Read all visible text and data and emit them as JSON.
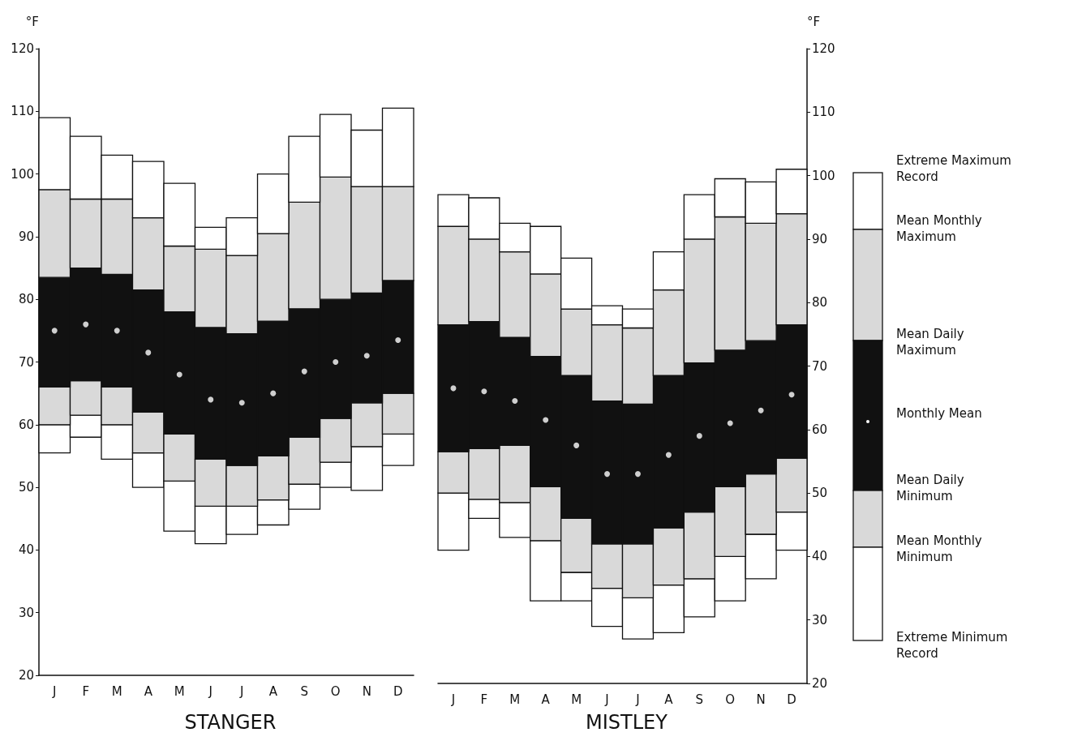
{
  "chart_data": [
    {
      "type": "bar",
      "title": "STANGER",
      "ylabel": "°F",
      "grid": false,
      "marker": "circle",
      "categories": [
        "J",
        "F",
        "M",
        "A",
        "M",
        "J",
        "J",
        "A",
        "S",
        "O",
        "N",
        "D"
      ],
      "ylim": [
        20,
        120
      ],
      "yticks": [
        20,
        30,
        40,
        50,
        60,
        70,
        80,
        90,
        100,
        110,
        120
      ],
      "series": [
        {
          "color": "#ffffff",
          "base": [
            55.5,
            58,
            54.5,
            50,
            43,
            41,
            42.5,
            44,
            46.5,
            50,
            49.5,
            53.5
          ],
          "values": [
            4.5,
            3.5,
            5.5,
            5.5,
            8,
            6,
            4.5,
            4,
            4,
            4,
            7,
            5
          ]
        },
        {
          "color": "#d9d9d9",
          "base": [
            60,
            61.5,
            60,
            55.5,
            51,
            47,
            47,
            48,
            50.5,
            54,
            56.5,
            58.5
          ],
          "values": [
            6,
            5.5,
            6,
            6.5,
            7.5,
            7.5,
            6.5,
            7,
            7.5,
            7,
            7,
            6.5
          ]
        },
        {
          "color": "#111111",
          "base": [
            66,
            67,
            66,
            62,
            58.5,
            54.5,
            53.5,
            55,
            58,
            61,
            63.5,
            65
          ],
          "values": [
            17.5,
            18,
            18,
            19.5,
            19.5,
            21,
            21,
            21.5,
            20.5,
            19,
            17.5,
            18
          ]
        },
        {
          "color": "#d9d9d9",
          "base": [
            83.5,
            85,
            84,
            81.5,
            78,
            75.5,
            74.5,
            76.5,
            78.5,
            80,
            81,
            83
          ],
          "values": [
            14,
            11,
            12,
            11.5,
            10.5,
            12.5,
            12.5,
            14,
            17,
            19.5,
            17,
            15
          ]
        },
        {
          "color": "#ffffff",
          "base": [
            97.5,
            96,
            96,
            93,
            88.5,
            88,
            87,
            90.5,
            95.5,
            99.5,
            98,
            98
          ],
          "values": [
            11.5,
            10,
            7,
            9,
            10,
            3.5,
            6,
            9.5,
            10.5,
            10,
            9,
            12.5
          ]
        },
        {
          "type": "scatter",
          "color": "#ffffff",
          "values": [
            75,
            76,
            75,
            71.5,
            68,
            64,
            63.5,
            65,
            68.5,
            70,
            71,
            73.5
          ]
        }
      ]
    },
    {
      "type": "bar",
      "title": "MISTLEY",
      "y2label": "°F",
      "grid": false,
      "marker": "circle",
      "categories": [
        "J",
        "F",
        "M",
        "A",
        "M",
        "J",
        "J",
        "A",
        "S",
        "O",
        "N",
        "D"
      ],
      "y2lim": [
        20,
        120
      ],
      "y2ticks": [
        20,
        30,
        40,
        50,
        60,
        70,
        80,
        90,
        100,
        110,
        120
      ],
      "series": [
        {
          "color": "#ffffff",
          "axis": "y2",
          "base": [
            41,
            46,
            43,
            33,
            33,
            29,
            27,
            28,
            30.5,
            33,
            36.5,
            41
          ],
          "values": [
            9,
            3,
            5.5,
            9.5,
            4.5,
            6,
            6.5,
            7.5,
            6,
            7,
            7,
            6
          ]
        },
        {
          "color": "#d9d9d9",
          "axis": "y2",
          "base": [
            50,
            49,
            48.5,
            42.5,
            37.5,
            35,
            33.5,
            35.5,
            36.5,
            40,
            43.5,
            47
          ],
          "values": [
            6.5,
            8,
            9,
            8.5,
            8.5,
            7,
            8.5,
            9,
            10.5,
            11,
            9.5,
            8.5
          ]
        },
        {
          "color": "#111111",
          "axis": "y2",
          "base": [
            56.5,
            57,
            57.5,
            51,
            46,
            42,
            42,
            44.5,
            47,
            51,
            53,
            55.5
          ],
          "values": [
            20,
            20,
            17,
            20.5,
            22.5,
            22.5,
            22,
            24,
            23.5,
            21.5,
            21,
            21
          ]
        },
        {
          "color": "#d9d9d9",
          "axis": "y2",
          "base": [
            76.5,
            77,
            74.5,
            71.5,
            68.5,
            64.5,
            64,
            68.5,
            70.5,
            72.5,
            74,
            76.5
          ],
          "values": [
            15.5,
            13,
            13.5,
            13,
            10.5,
            12,
            12,
            13.5,
            19.5,
            21,
            18.5,
            17.5
          ]
        },
        {
          "color": "#ffffff",
          "axis": "y2",
          "base": [
            92,
            90,
            88,
            84.5,
            79,
            76.5,
            76,
            82,
            90,
            93.5,
            92.5,
            94
          ],
          "values": [
            5,
            6.5,
            4.5,
            7.5,
            8,
            3,
            3,
            6,
            7,
            6,
            6.5,
            7
          ]
        },
        {
          "type": "scatter",
          "color": "#ffffff",
          "axis": "y2",
          "values": [
            66.5,
            66,
            64.5,
            61.5,
            57.5,
            53,
            53,
            56,
            59,
            61,
            63,
            65.5
          ]
        }
      ],
      "annotations": [
        "Extreme Maximum Record",
        "Mean Monthly Maximum",
        "Mean Daily Maximum",
        "Monthly Mean",
        "Mean Daily Minimum",
        "Mean Monthly Minimum",
        "Extreme Minimum Record"
      ]
    }
  ]
}
